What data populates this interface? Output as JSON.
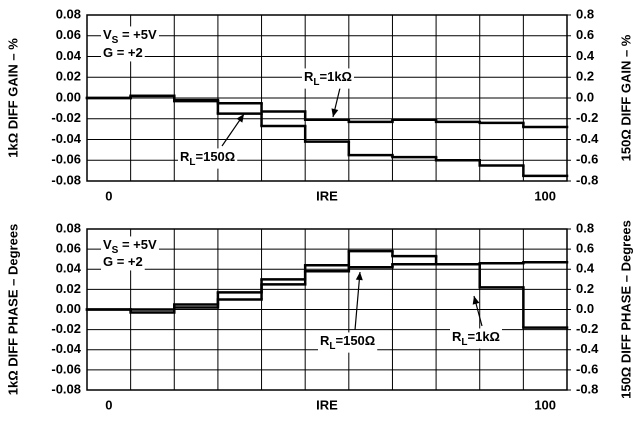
{
  "chart_data": [
    {
      "type": "step",
      "ylabel": "1kΩ DIFF GAIN – %",
      "y2label": "150Ω DIFF GAIN – %",
      "xlabel": "IRE",
      "x": [
        0,
        10,
        20,
        30,
        40,
        50,
        60,
        70,
        80,
        90,
        100
      ],
      "xlim": [
        -5,
        105
      ],
      "xticks": [
        0,
        100
      ],
      "ylim": [
        -0.08,
        0.08
      ],
      "yticks": [
        0.08,
        0.06,
        0.04,
        0.02,
        {
          "value": 0,
          "label": "0.00"
        },
        -0.02,
        -0.04,
        -0.06,
        -0.08
      ],
      "y2lim": [
        -0.8,
        0.8
      ],
      "y2ticks": [
        0.8,
        0.6,
        0.4,
        0.2,
        {
          "value": 0,
          "label": "0.0"
        },
        -0.2,
        -0.4,
        -0.6,
        -0.8
      ],
      "grid": true,
      "series": [
        {
          "color": "#000000",
          "axis": "y",
          "values": [
            0,
            0.002,
            -0.002,
            -0.005,
            -0.013,
            -0.021,
            -0.023,
            -0.021,
            -0.023,
            -0.024,
            -0.028
          ]
        },
        {
          "color": "#000000",
          "axis": "y2",
          "values": [
            0,
            0.02,
            -0.03,
            -0.15,
            -0.27,
            -0.42,
            -0.55,
            -0.57,
            -0.6,
            -0.65,
            -0.75
          ]
        }
      ],
      "annotations": [
        {
          "text": "V",
          "sub": "S",
          "tail": " = +5V"
        },
        {
          "text": "G = +2"
        },
        {
          "text": "R",
          "sub": "L",
          "tail": "=1kΩ"
        },
        {
          "text": "R",
          "sub": "L",
          "tail": "=150Ω"
        }
      ]
    },
    {
      "type": "step",
      "ylabel": "1kΩ DIFF PHASE – Degrees",
      "y2label": "150Ω DIFF PHASE – Degrees",
      "xlabel": "IRE",
      "x": [
        0,
        10,
        20,
        30,
        40,
        50,
        60,
        70,
        80,
        90,
        100
      ],
      "xlim": [
        -5,
        105
      ],
      "xticks": [
        0,
        100
      ],
      "ylim": [
        -0.08,
        0.08
      ],
      "yticks": [
        0.08,
        0.06,
        0.04,
        0.02,
        {
          "value": 0,
          "label": "0.00"
        },
        -0.02,
        -0.04,
        -0.06,
        -0.08
      ],
      "y2lim": [
        -0.8,
        0.8
      ],
      "y2ticks": [
        0.8,
        0.6,
        0.4,
        0.2,
        {
          "value": 0,
          "label": "0.0"
        },
        -0.2,
        -0.4,
        -0.6,
        -0.8
      ],
      "grid": true,
      "series": [
        {
          "color": "#000000",
          "axis": "y",
          "values": [
            0,
            -0.003,
            0.005,
            0.017,
            0.03,
            0.044,
            0.058,
            0.053,
            0.045,
            0.022,
            -0.018
          ]
        },
        {
          "color": "#000000",
          "axis": "y2",
          "values": [
            0,
            0,
            0.02,
            0.1,
            0.25,
            0.38,
            0.42,
            0.45,
            0.45,
            0.46,
            0.47
          ]
        }
      ],
      "annotations": [
        {
          "text": "V",
          "sub": "S",
          "tail": " = +5V"
        },
        {
          "text": "G = +2"
        },
        {
          "text": "R",
          "sub": "L",
          "tail": "=150Ω"
        },
        {
          "text": "R",
          "sub": "L",
          "tail": "=1kΩ"
        }
      ]
    }
  ]
}
